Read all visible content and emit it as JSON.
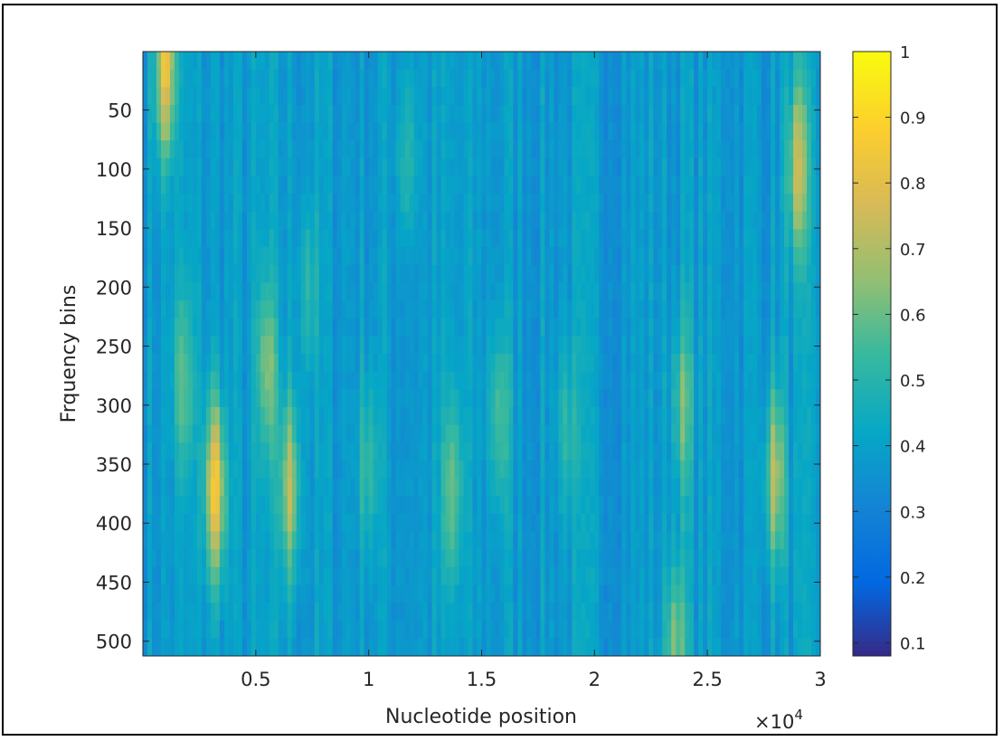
{
  "chart_data": {
    "type": "heatmap",
    "xlabel": "Nucleotide position",
    "ylabel": "Frquency bins",
    "x_multiplier_label": "×10",
    "x_multiplier_exponent": "4",
    "xlim": [
      0,
      30000
    ],
    "ylim": [
      1,
      512
    ],
    "y_reversed": true,
    "x_ticks": [
      5000,
      10000,
      15000,
      20000,
      25000,
      30000
    ],
    "x_tick_labels": [
      "0.5",
      "1",
      "1.5",
      "2",
      "2.5",
      "3"
    ],
    "y_ticks": [
      50,
      100,
      150,
      200,
      250,
      300,
      350,
      400,
      450,
      500
    ],
    "y_tick_labels": [
      "50",
      "100",
      "150",
      "200",
      "250",
      "300",
      "350",
      "400",
      "450",
      "500"
    ],
    "colorbar": {
      "colormap": "parula",
      "range": [
        0.08,
        1.0
      ],
      "ticks": [
        0.1,
        0.2,
        0.3,
        0.4,
        0.5,
        0.6,
        0.7,
        0.8,
        0.9,
        1
      ],
      "tick_labels": [
        "0.1",
        "0.2",
        "0.3",
        "0.4",
        "0.5",
        "0.6",
        "0.7",
        "0.8",
        "0.9",
        "1"
      ]
    },
    "background_value": 0.38,
    "hotspots": [
      {
        "x": 3200,
        "y": 370,
        "value": 0.85
      },
      {
        "x": 1000,
        "y": 15,
        "value": 0.82
      },
      {
        "x": 29000,
        "y": 100,
        "value": 0.72
      },
      {
        "x": 6500,
        "y": 370,
        "value": 0.7
      },
      {
        "x": 5500,
        "y": 270,
        "value": 0.62
      },
      {
        "x": 28000,
        "y": 360,
        "value": 0.7
      },
      {
        "x": 1800,
        "y": 280,
        "value": 0.58
      },
      {
        "x": 13700,
        "y": 370,
        "value": 0.6
      },
      {
        "x": 15800,
        "y": 310,
        "value": 0.58
      },
      {
        "x": 10000,
        "y": 350,
        "value": 0.55
      },
      {
        "x": 23900,
        "y": 300,
        "value": 0.6
      },
      {
        "x": 23600,
        "y": 505,
        "value": 0.65
      },
      {
        "x": 18800,
        "y": 320,
        "value": 0.52
      },
      {
        "x": 7300,
        "y": 200,
        "value": 0.52
      },
      {
        "x": 11700,
        "y": 90,
        "value": 0.52
      }
    ]
  }
}
